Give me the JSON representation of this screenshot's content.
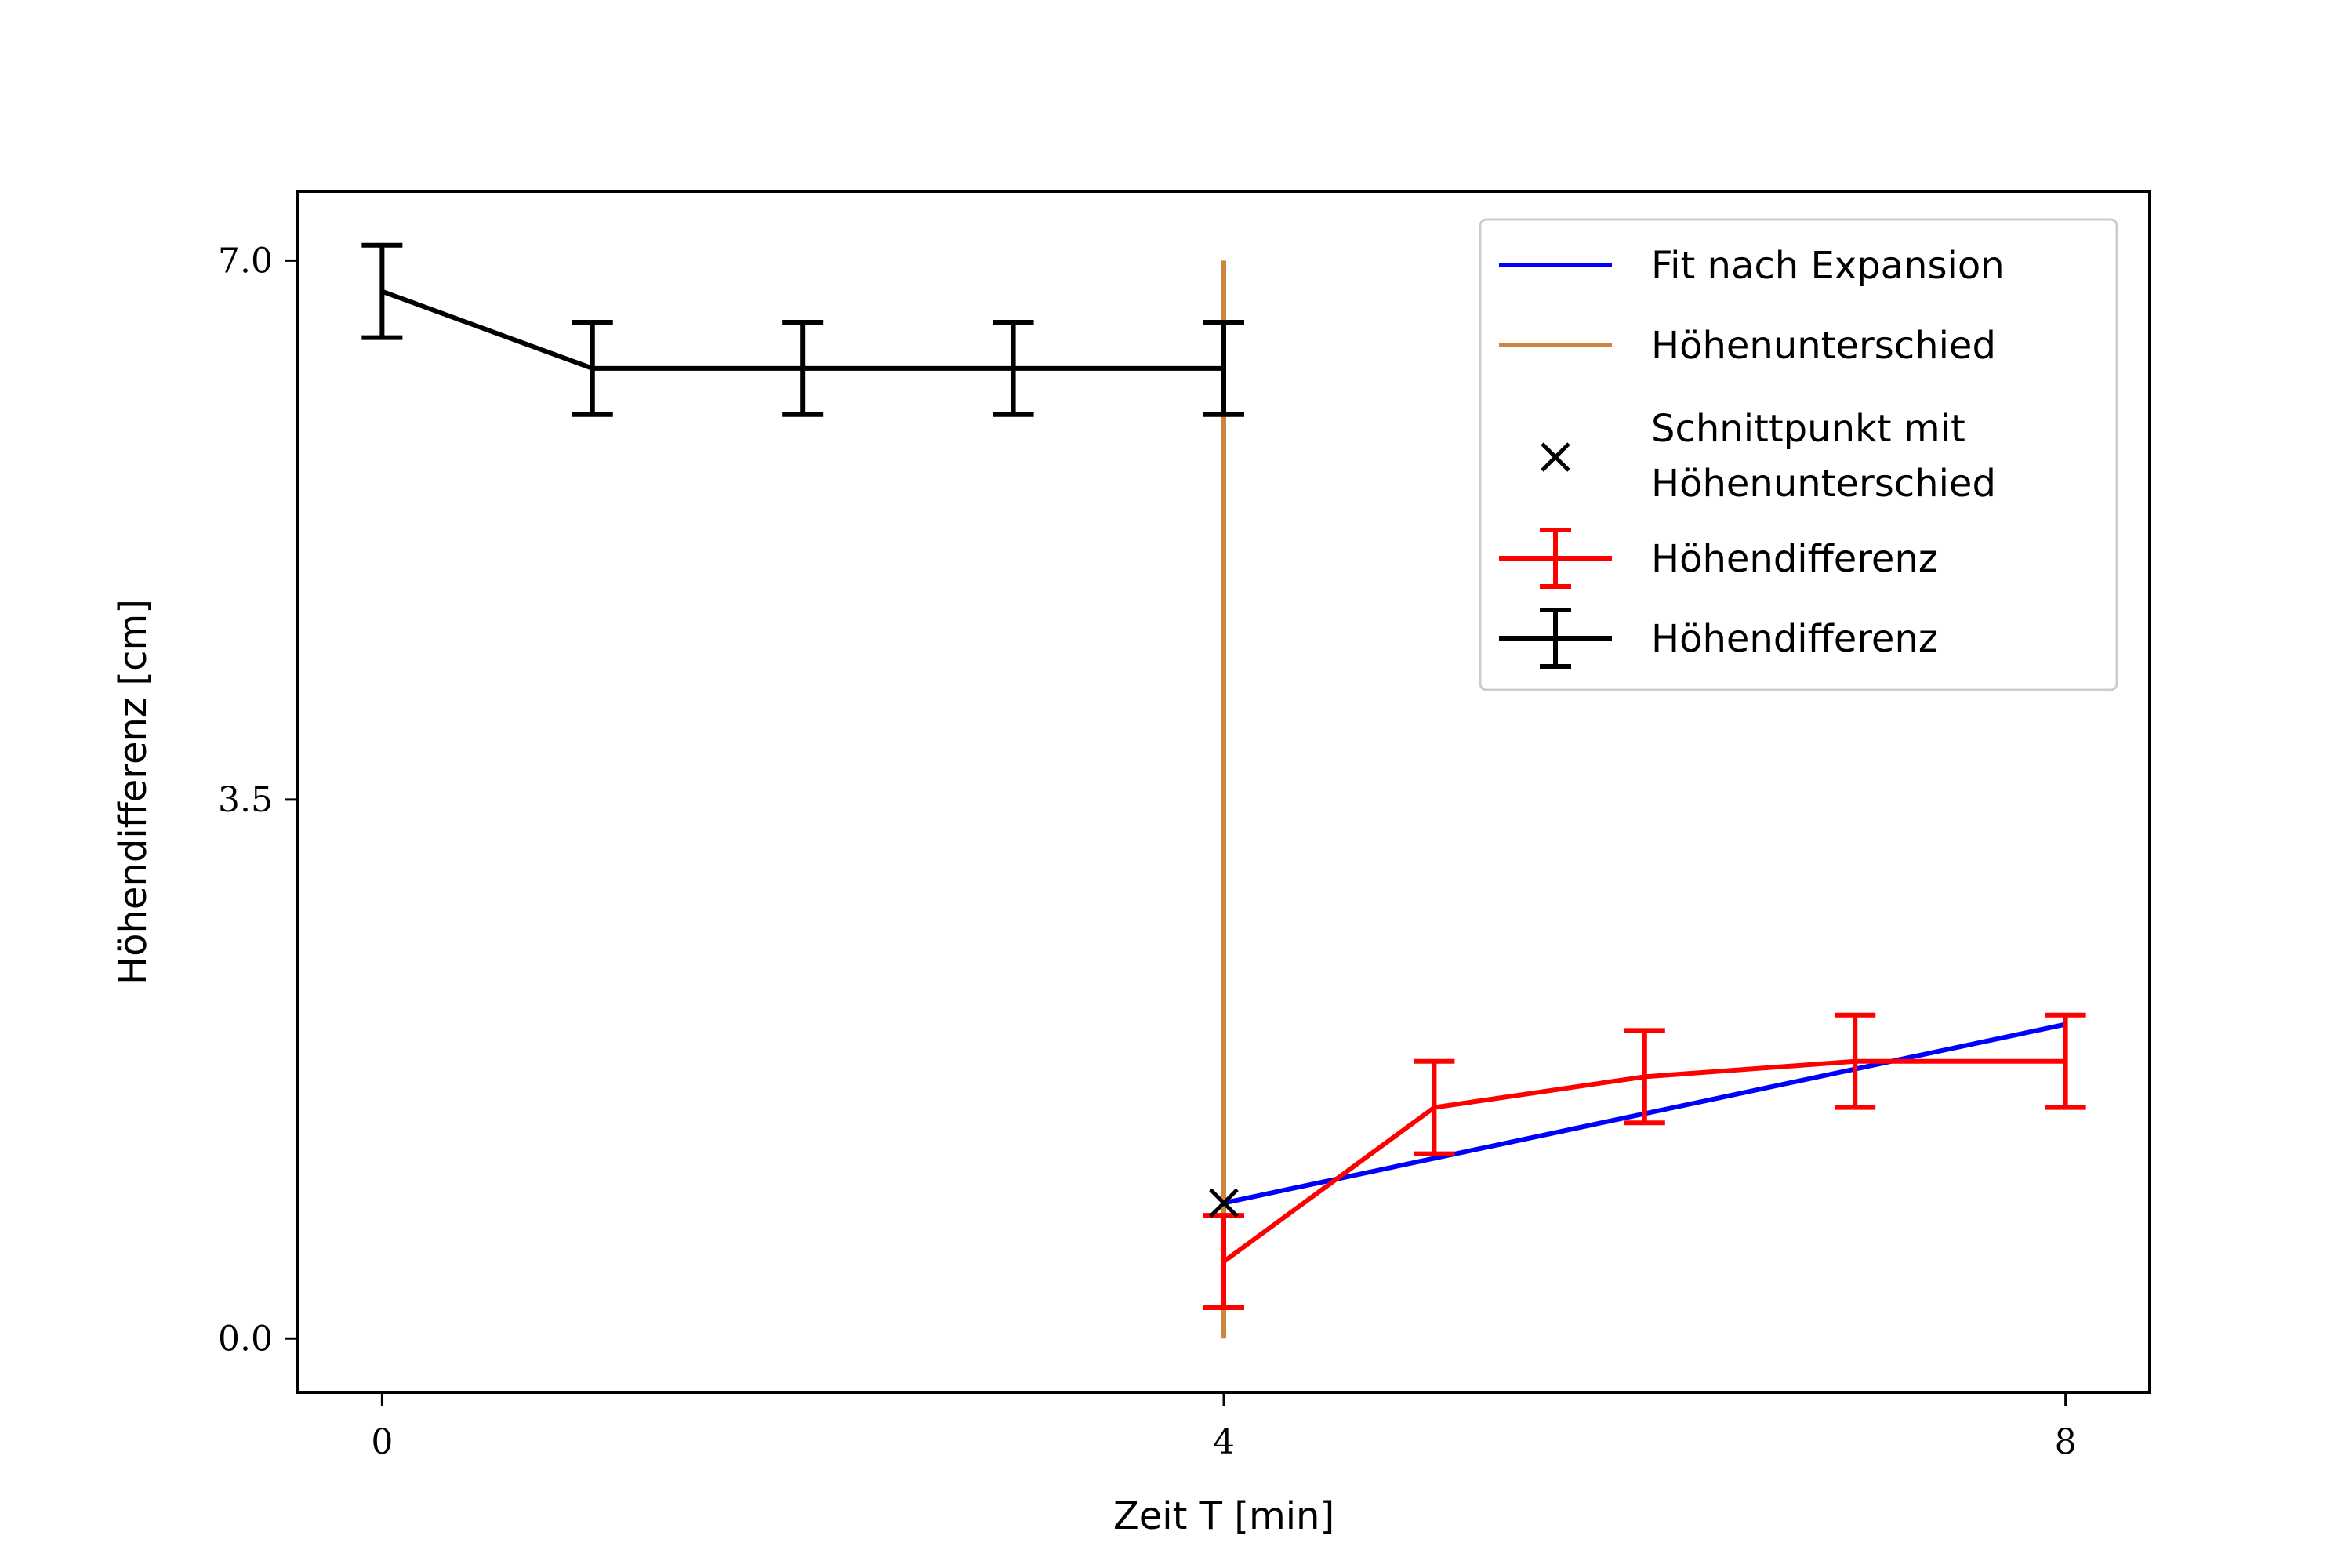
{
  "chart_data": {
    "type": "line",
    "title": "",
    "xlabel": "Zeit T [min]",
    "ylabel": "Höhendifferenz [cm]",
    "xlim": [
      -0.4,
      8.4
    ],
    "ylim": [
      -0.35,
      7.45
    ],
    "xticks": [
      0,
      4,
      8
    ],
    "xtick_labels": [
      "0",
      "4",
      "8"
    ],
    "yticks": [
      0.0,
      3.5,
      7.0
    ],
    "ytick_labels": [
      "0.0",
      "3.5",
      "7.0"
    ],
    "grid": false,
    "legend_position": "top-right",
    "series": [
      {
        "name": "Fit nach Expansion",
        "kind": "line",
        "color": "#0000ff",
        "x": [
          4,
          8
        ],
        "y": [
          0.88,
          2.04
        ]
      },
      {
        "name": "Höhenunterschied",
        "kind": "vline",
        "color": "#cd853f",
        "x": [
          4,
          4
        ],
        "y": [
          0.0,
          7.0
        ]
      },
      {
        "name": "Schnittpunkt mit Höhenunterschied",
        "kind": "marker",
        "color": "#000000",
        "x": [
          4
        ],
        "y": [
          0.88
        ]
      },
      {
        "name": "Höhendifferenz",
        "kind": "errorbar",
        "color": "#ff0000",
        "x": [
          4,
          5,
          6,
          7,
          8
        ],
        "y": [
          0.5,
          1.5,
          1.7,
          1.8,
          1.8
        ],
        "yerr": [
          0.3,
          0.3,
          0.3,
          0.3,
          0.3
        ]
      },
      {
        "name": "Höhendifferenz",
        "kind": "errorbar",
        "color": "#000000",
        "x": [
          0,
          1,
          2,
          3,
          4
        ],
        "y": [
          6.8,
          6.3,
          6.3,
          6.3,
          6.3
        ],
        "yerr": [
          0.3,
          0.3,
          0.3,
          0.3,
          0.3
        ]
      }
    ],
    "legend": [
      {
        "label": "Fit nach Expansion",
        "series": 0
      },
      {
        "label": "Höhenunterschied",
        "series": 1
      },
      {
        "label": "Schnittpunkt mit",
        "label2": "Höhenunterschied",
        "series": 2
      },
      {
        "label": "Höhendifferenz",
        "series": 3
      },
      {
        "label": "Höhendifferenz",
        "series": 4
      }
    ]
  }
}
